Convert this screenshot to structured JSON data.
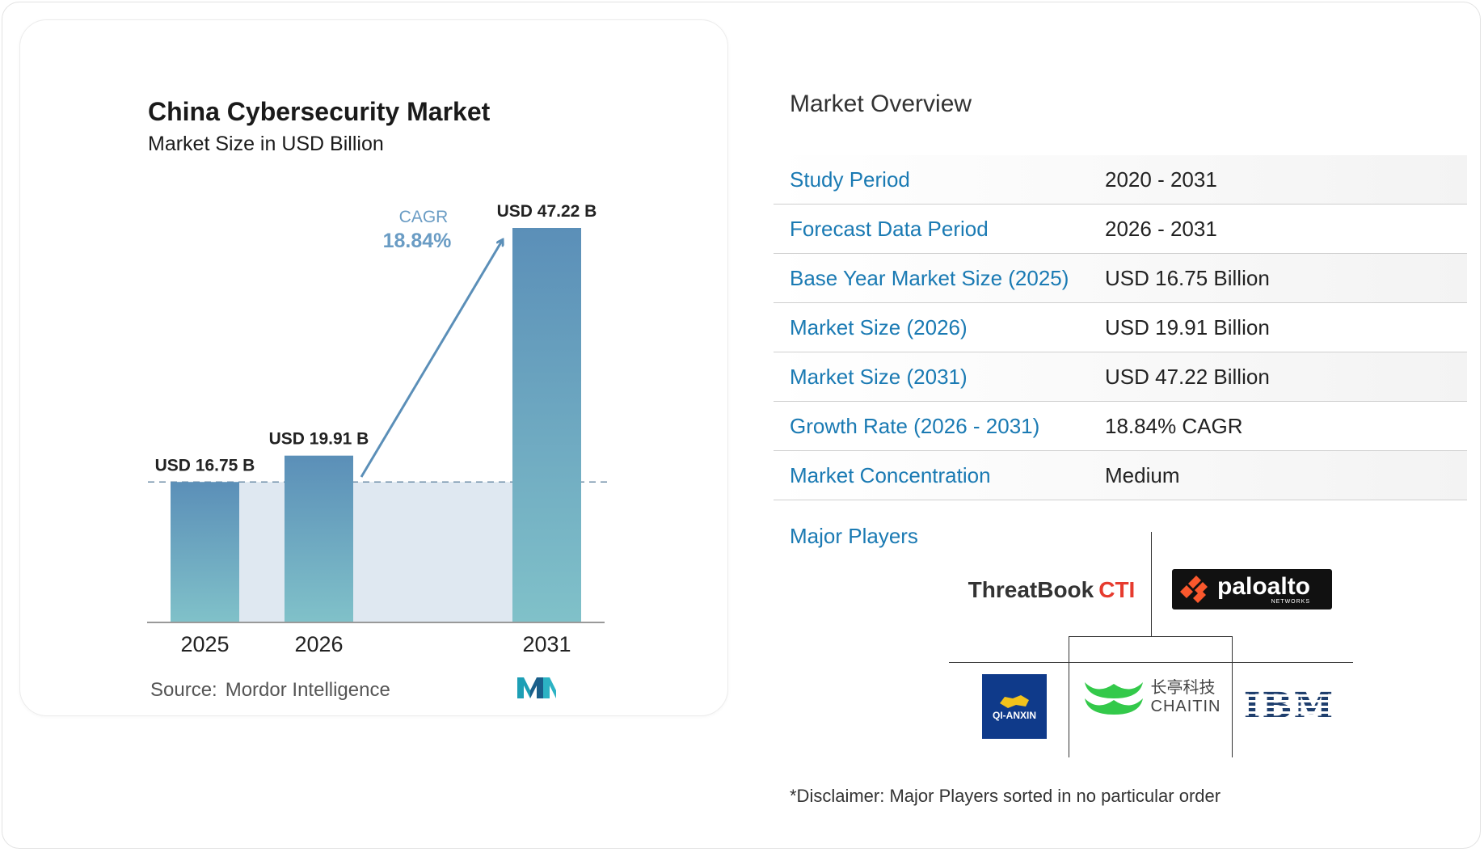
{
  "chart_data": {
    "type": "bar",
    "title": "China Cybersecurity Market",
    "subtitle": "Market Size in USD Billion",
    "categories": [
      "2025",
      "2026",
      "2031"
    ],
    "values": [
      16.75,
      19.91,
      47.22
    ],
    "data_labels": [
      "USD 16.75 B",
      "USD 19.91 B",
      "USD 47.22 B"
    ],
    "cagr_label": "CAGR",
    "cagr_value": "18.84%",
    "colors": {
      "bar_top": "#5b8fb8",
      "bar_bottom": "#80c1c9",
      "band": "#dfe8f1",
      "arrow": "#5b8fb8",
      "cagr": "#6a9cc4",
      "axis": "#999999"
    }
  },
  "source": {
    "label": "Source:",
    "name": "Mordor Intelligence",
    "logo_icon": "mordor-intelligence-logo-icon"
  },
  "overview": {
    "title": "Market Overview",
    "rows": [
      {
        "label": "Study Period",
        "value": "2020 - 2031"
      },
      {
        "label": "Forecast Data Period",
        "value": "2026 - 2031"
      },
      {
        "label": "Base Year Market Size (2025)",
        "value": "USD 16.75 Billion"
      },
      {
        "label": "Market Size (2026)",
        "value": "USD 19.91 Billion"
      },
      {
        "label": "Market Size (2031)",
        "value": "USD 47.22 Billion"
      },
      {
        "label": "Growth Rate (2026 - 2031)",
        "value": "18.84% CAGR"
      },
      {
        "label": "Market Concentration",
        "value": "Medium"
      }
    ]
  },
  "players": {
    "title": "Major Players",
    "threatbook": {
      "name": "ThreatBook",
      "suffix": "CTI"
    },
    "paloalto": {
      "name": "paloalto",
      "tag": "NETWORKS"
    },
    "qianxin": {
      "name": "QI-ANXIN"
    },
    "chaitin": {
      "cn": "长亭科技",
      "en": "CHAITIN"
    },
    "ibm": {
      "name": "IBM"
    }
  },
  "disclaimer": "*Disclaimer: Major Players sorted in no particular order"
}
